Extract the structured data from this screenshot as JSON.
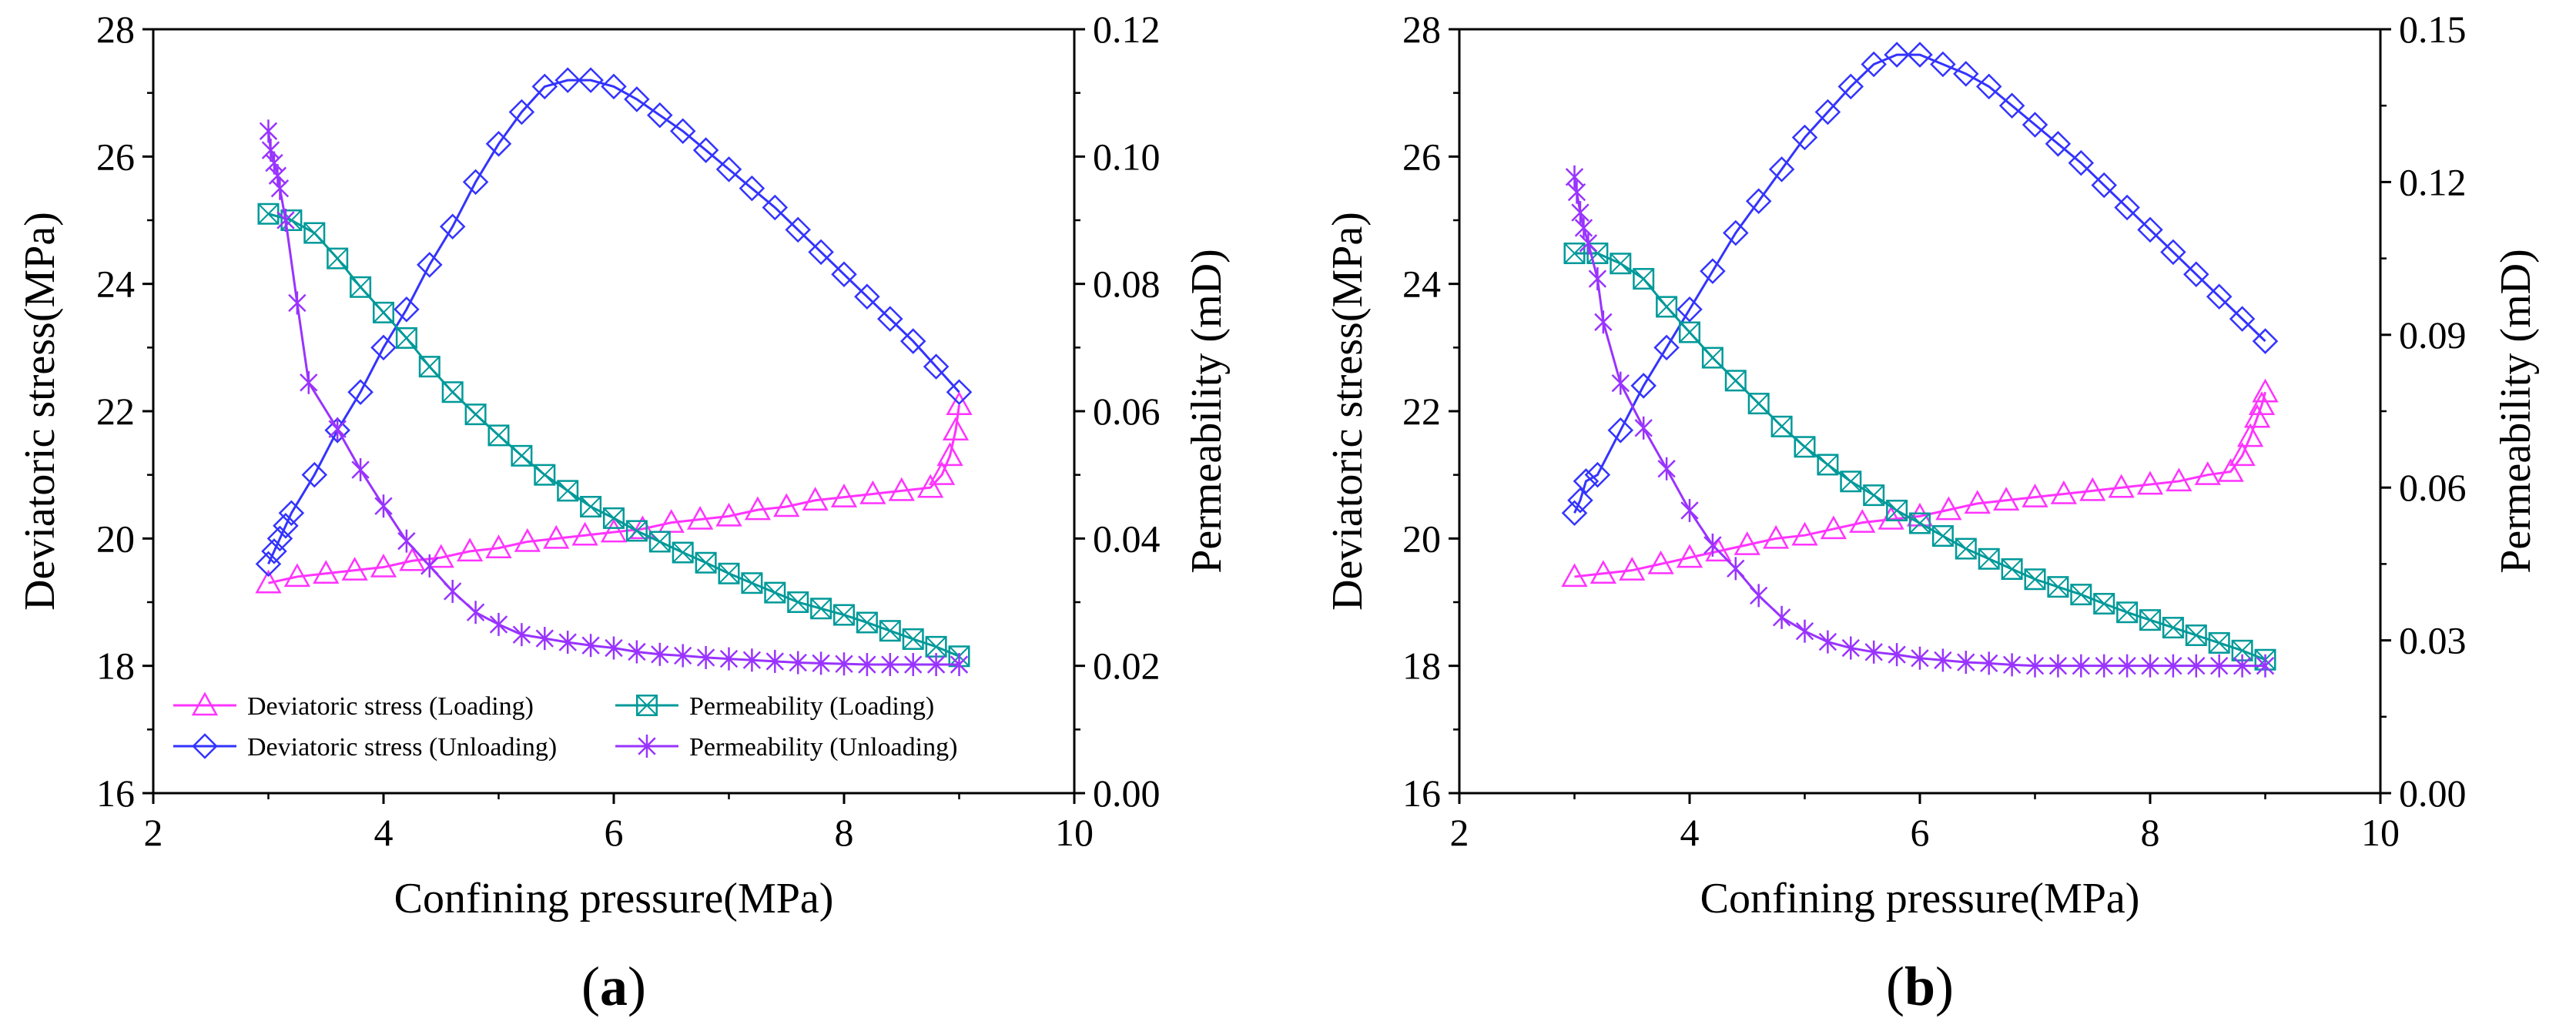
{
  "chart_data": [
    {
      "type": "line",
      "panel_label": "a",
      "xlabel": "Confining pressure(MPa)",
      "ylabel": "Deviatoric stress(MPa)",
      "y2label": "Permeability (mD)",
      "xlim": [
        2,
        10
      ],
      "ylim": [
        16,
        28
      ],
      "y2lim": [
        0.0,
        0.12
      ],
      "xticks": [
        "2",
        "4",
        "6",
        "8",
        "10"
      ],
      "yticks": [
        "16",
        "18",
        "20",
        "22",
        "24",
        "26",
        "28"
      ],
      "y2ticks": [
        "0.00",
        "0.02",
        "0.04",
        "0.06",
        "0.08",
        "0.10",
        "0.12"
      ],
      "grid": false,
      "legend_position": "bottom-left",
      "series": [
        {
          "name": "Deviatoric stress (Loading)",
          "axis": "left",
          "color": "#ff33ff",
          "marker": "triangle",
          "x": [
            3.0,
            3.25,
            3.5,
            3.75,
            4.0,
            4.25,
            4.5,
            4.75,
            5.0,
            5.25,
            5.5,
            5.75,
            6.0,
            6.25,
            6.5,
            6.75,
            7.0,
            7.25,
            7.5,
            7.75,
            8.0,
            8.25,
            8.5,
            8.75,
            8.85,
            8.92,
            8.97,
            9.0
          ],
          "y": [
            19.3,
            19.4,
            19.45,
            19.5,
            19.55,
            19.65,
            19.7,
            19.8,
            19.85,
            19.95,
            20.0,
            20.05,
            20.1,
            20.15,
            20.25,
            20.3,
            20.35,
            20.45,
            20.5,
            20.6,
            20.65,
            20.7,
            20.75,
            20.8,
            21.0,
            21.3,
            21.7,
            22.1
          ]
        },
        {
          "name": "Deviatoric stress (Unloading)",
          "axis": "left",
          "color": "#3333ff",
          "marker": "diamond",
          "x": [
            9.0,
            8.8,
            8.6,
            8.4,
            8.2,
            8.0,
            7.8,
            7.6,
            7.4,
            7.2,
            7.0,
            6.8,
            6.6,
            6.4,
            6.2,
            6.0,
            5.8,
            5.6,
            5.4,
            5.2,
            5.0,
            4.8,
            4.6,
            4.4,
            4.2,
            4.0,
            3.8,
            3.6,
            3.4,
            3.2,
            3.15,
            3.1,
            3.05,
            3.0
          ],
          "y": [
            22.3,
            22.7,
            23.1,
            23.45,
            23.8,
            24.15,
            24.5,
            24.85,
            25.2,
            25.5,
            25.8,
            26.1,
            26.4,
            26.65,
            26.9,
            27.1,
            27.2,
            27.2,
            27.1,
            26.7,
            26.2,
            25.6,
            24.9,
            24.3,
            23.6,
            23.0,
            22.3,
            21.7,
            21.0,
            20.4,
            20.2,
            20.0,
            19.8,
            19.6
          ]
        },
        {
          "name": "Permeability (Loading)",
          "axis": "right",
          "color": "#009999",
          "marker": "square-x",
          "x": [
            3.0,
            3.2,
            3.4,
            3.6,
            3.8,
            4.0,
            4.2,
            4.4,
            4.6,
            4.8,
            5.0,
            5.2,
            5.4,
            5.6,
            5.8,
            6.0,
            6.2,
            6.4,
            6.6,
            6.8,
            7.0,
            7.2,
            7.4,
            7.6,
            7.8,
            8.0,
            8.2,
            8.4,
            8.6,
            8.8,
            9.0
          ],
          "y": [
            0.091,
            0.09,
            0.088,
            0.084,
            0.0795,
            0.0755,
            0.0715,
            0.067,
            0.063,
            0.0595,
            0.0562,
            0.053,
            0.05,
            0.0475,
            0.045,
            0.0432,
            0.0412,
            0.0395,
            0.0378,
            0.0362,
            0.0345,
            0.033,
            0.0315,
            0.03,
            0.029,
            0.028,
            0.0268,
            0.0255,
            0.0242,
            0.023,
            0.0215
          ]
        },
        {
          "name": "Permeability (Unloading)",
          "axis": "right",
          "color": "#9933ff",
          "marker": "star",
          "x": [
            3.0,
            3.02,
            3.05,
            3.08,
            3.1,
            3.15,
            3.25,
            3.35,
            3.6,
            3.8,
            4.0,
            4.2,
            4.4,
            4.6,
            4.8,
            5.0,
            5.2,
            5.4,
            5.6,
            5.8,
            6.0,
            6.2,
            6.4,
            6.6,
            6.8,
            7.0,
            7.2,
            7.4,
            7.6,
            7.8,
            8.0,
            8.2,
            8.4,
            8.6,
            8.8,
            9.0
          ],
          "y": [
            0.104,
            0.101,
            0.099,
            0.097,
            0.095,
            0.09,
            0.077,
            0.0645,
            0.0572,
            0.0508,
            0.0451,
            0.0396,
            0.0357,
            0.0317,
            0.0284,
            0.0265,
            0.0249,
            0.0243,
            0.0237,
            0.0232,
            0.0228,
            0.0222,
            0.0218,
            0.0216,
            0.0213,
            0.0211,
            0.0209,
            0.0207,
            0.0205,
            0.0204,
            0.0203,
            0.0202,
            0.0202,
            0.0202,
            0.0202,
            0.0202
          ]
        }
      ]
    },
    {
      "type": "line",
      "panel_label": "b",
      "xlabel": "Confining pressure(MPa)",
      "ylabel": "Deviatoric stress(MPa)",
      "y2label": "Permeability (mD)",
      "xlim": [
        2,
        10
      ],
      "ylim": [
        16,
        28
      ],
      "y2lim": [
        0.0,
        0.15
      ],
      "xticks": [
        "2",
        "4",
        "6",
        "8",
        "10"
      ],
      "yticks": [
        "16",
        "18",
        "20",
        "22",
        "24",
        "26",
        "28"
      ],
      "y2ticks": [
        "0.00",
        "0.03",
        "0.06",
        "0.09",
        "0.12",
        "0.15"
      ],
      "grid": false,
      "legend_position": "none",
      "series": [
        {
          "name": "Deviatoric stress (Loading)",
          "axis": "left",
          "color": "#ff33ff",
          "marker": "triangle",
          "x": [
            3.0,
            3.25,
            3.5,
            3.75,
            4.0,
            4.25,
            4.5,
            4.75,
            5.0,
            5.25,
            5.5,
            5.75,
            6.0,
            6.25,
            6.5,
            6.75,
            7.0,
            7.25,
            7.5,
            7.75,
            8.0,
            8.25,
            8.5,
            8.7,
            8.8,
            8.87,
            8.93,
            8.97,
            9.0
          ],
          "y": [
            19.4,
            19.45,
            19.5,
            19.6,
            19.7,
            19.8,
            19.9,
            20.0,
            20.05,
            20.15,
            20.25,
            20.3,
            20.35,
            20.45,
            20.55,
            20.6,
            20.65,
            20.7,
            20.75,
            20.8,
            20.85,
            20.9,
            21.0,
            21.05,
            21.3,
            21.6,
            21.9,
            22.1,
            22.3
          ]
        },
        {
          "name": "Deviatoric stress (Unloading)",
          "axis": "left",
          "color": "#3333ff",
          "marker": "diamond",
          "x": [
            9.0,
            8.8,
            8.6,
            8.4,
            8.2,
            8.0,
            7.8,
            7.6,
            7.4,
            7.2,
            7.0,
            6.8,
            6.6,
            6.4,
            6.2,
            6.0,
            5.8,
            5.6,
            5.4,
            5.2,
            5.0,
            4.8,
            4.6,
            4.4,
            4.2,
            4.0,
            3.8,
            3.6,
            3.4,
            3.2,
            3.1,
            3.05,
            3.0
          ],
          "y": [
            23.1,
            23.45,
            23.8,
            24.15,
            24.5,
            24.85,
            25.2,
            25.55,
            25.9,
            26.2,
            26.5,
            26.8,
            27.1,
            27.3,
            27.45,
            27.6,
            27.6,
            27.45,
            27.1,
            26.7,
            26.3,
            25.8,
            25.3,
            24.8,
            24.2,
            23.6,
            23.0,
            22.4,
            21.7,
            21.0,
            20.9,
            20.6,
            20.4
          ]
        },
        {
          "name": "Permeability (Loading)",
          "axis": "right",
          "color": "#009999",
          "marker": "square-x",
          "x": [
            3.0,
            3.2,
            3.4,
            3.6,
            3.8,
            4.0,
            4.2,
            4.4,
            4.6,
            4.8,
            5.0,
            5.2,
            5.4,
            5.6,
            5.8,
            6.0,
            6.2,
            6.4,
            6.6,
            6.8,
            7.0,
            7.2,
            7.4,
            7.6,
            7.8,
            8.0,
            8.2,
            8.4,
            8.6,
            8.8,
            9.0
          ],
          "y": [
            0.106,
            0.106,
            0.104,
            0.101,
            0.0955,
            0.0905,
            0.0855,
            0.081,
            0.0765,
            0.072,
            0.068,
            0.0645,
            0.0612,
            0.0585,
            0.0555,
            0.053,
            0.0505,
            0.048,
            0.046,
            0.044,
            0.042,
            0.0405,
            0.039,
            0.0372,
            0.0355,
            0.034,
            0.0325,
            0.031,
            0.0295,
            0.028,
            0.0262
          ]
        },
        {
          "name": "Permeability (Unloading)",
          "axis": "right",
          "color": "#9933ff",
          "marker": "star",
          "x": [
            3.0,
            3.02,
            3.05,
            3.08,
            3.12,
            3.2,
            3.25,
            3.4,
            3.6,
            3.8,
            4.0,
            4.2,
            4.4,
            4.6,
            4.8,
            5.0,
            5.2,
            5.4,
            5.6,
            5.8,
            6.0,
            6.2,
            6.4,
            6.6,
            6.8,
            7.0,
            7.2,
            7.4,
            7.6,
            7.8,
            8.0,
            8.2,
            8.4,
            8.6,
            8.8,
            9.0
          ],
          "y": [
            0.121,
            0.118,
            0.114,
            0.111,
            0.108,
            0.101,
            0.0925,
            0.0805,
            0.0717,
            0.0637,
            0.0555,
            0.0487,
            0.0441,
            0.0388,
            0.0345,
            0.0318,
            0.0297,
            0.0285,
            0.0277,
            0.0272,
            0.0265,
            0.0261,
            0.0257,
            0.0255,
            0.0252,
            0.025,
            0.025,
            0.025,
            0.025,
            0.025,
            0.025,
            0.025,
            0.025,
            0.025,
            0.025,
            0.025
          ]
        }
      ]
    }
  ]
}
